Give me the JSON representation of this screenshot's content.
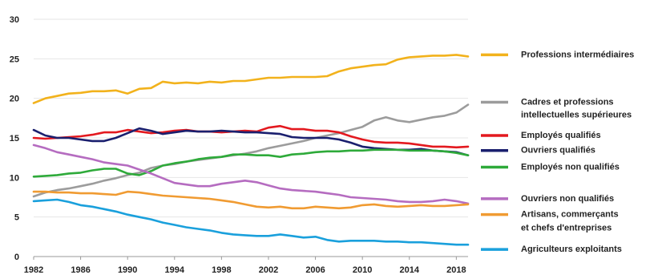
{
  "chart_data": {
    "type": "line",
    "title": "",
    "xlabel": "",
    "ylabel": "",
    "xlim": [
      1982,
      2019
    ],
    "ylim": [
      0,
      30
    ],
    "x_ticks": [
      1982,
      1986,
      1990,
      1994,
      1998,
      2002,
      2006,
      2010,
      2014,
      2018
    ],
    "y_ticks": [
      0,
      5,
      10,
      15,
      20,
      25,
      30
    ],
    "grid": "horizontal",
    "legend_position": "right",
    "x": [
      1982,
      1983,
      1984,
      1985,
      1986,
      1987,
      1988,
      1989,
      1990,
      1991,
      1992,
      1993,
      1994,
      1995,
      1996,
      1997,
      1998,
      1999,
      2000,
      2001,
      2002,
      2003,
      2004,
      2005,
      2006,
      2007,
      2008,
      2009,
      2010,
      2011,
      2012,
      2013,
      2014,
      2015,
      2016,
      2017,
      2018,
      2019
    ],
    "series": [
      {
        "name": "Professions intermédiaires",
        "color": "#f2b21c",
        "values": [
          19.4,
          20.0,
          20.3,
          20.6,
          20.7,
          20.9,
          20.9,
          21.0,
          20.6,
          21.2,
          21.3,
          22.1,
          21.9,
          22.0,
          21.9,
          22.1,
          22.0,
          22.2,
          22.2,
          22.4,
          22.6,
          22.6,
          22.7,
          22.7,
          22.7,
          22.8,
          23.4,
          23.8,
          24.0,
          24.2,
          24.3,
          24.9,
          25.2,
          25.3,
          25.4,
          25.4,
          25.5,
          25.3
        ]
      },
      {
        "name": "Cadres et professions intellectuelles supérieures",
        "color": "#9c9c9c",
        "values": [
          7.6,
          8.1,
          8.4,
          8.6,
          8.9,
          9.2,
          9.6,
          9.9,
          10.3,
          10.6,
          11.2,
          11.5,
          11.7,
          12.0,
          12.2,
          12.4,
          12.6,
          12.8,
          13.0,
          13.3,
          13.7,
          14.0,
          14.3,
          14.6,
          15.0,
          15.3,
          15.6,
          16.0,
          16.4,
          17.2,
          17.6,
          17.2,
          17.0,
          17.3,
          17.6,
          17.8,
          18.2,
          19.2
        ]
      },
      {
        "name": "Employés qualifiés",
        "color": "#e3191f",
        "values": [
          15.0,
          14.9,
          15.0,
          15.1,
          15.2,
          15.4,
          15.7,
          15.7,
          16.0,
          15.8,
          15.6,
          15.7,
          15.9,
          16.0,
          15.8,
          15.8,
          15.7,
          15.8,
          15.9,
          15.8,
          16.3,
          16.5,
          16.1,
          16.1,
          15.9,
          15.9,
          15.7,
          15.2,
          14.8,
          14.5,
          14.4,
          14.4,
          14.3,
          14.1,
          13.9,
          13.9,
          13.8,
          13.9
        ]
      },
      {
        "name": "Ouvriers qualifiés",
        "color": "#1a1f6e",
        "values": [
          16.0,
          15.3,
          15.0,
          15.0,
          14.8,
          14.6,
          14.6,
          15.0,
          15.6,
          16.2,
          15.9,
          15.5,
          15.7,
          15.9,
          15.8,
          15.8,
          15.9,
          15.8,
          15.7,
          15.7,
          15.6,
          15.5,
          15.1,
          15.0,
          15.0,
          15.0,
          14.8,
          14.4,
          13.9,
          13.7,
          13.6,
          13.5,
          13.5,
          13.6,
          13.4,
          13.3,
          13.2,
          12.8
        ]
      },
      {
        "name": "Employés non qualifiés",
        "color": "#2eaa3a",
        "values": [
          10.1,
          10.2,
          10.3,
          10.5,
          10.6,
          10.9,
          11.1,
          11.1,
          10.5,
          10.3,
          10.8,
          11.5,
          11.8,
          12.0,
          12.3,
          12.5,
          12.6,
          12.9,
          12.9,
          12.8,
          12.8,
          12.6,
          12.9,
          13.0,
          13.2,
          13.3,
          13.3,
          13.4,
          13.4,
          13.5,
          13.5,
          13.5,
          13.4,
          13.4,
          13.4,
          13.3,
          13.1,
          12.8
        ]
      },
      {
        "name": "Ouvriers non qualifiés",
        "color": "#b56cc0",
        "values": [
          14.1,
          13.7,
          13.2,
          12.9,
          12.6,
          12.3,
          11.9,
          11.7,
          11.5,
          11.0,
          10.5,
          9.9,
          9.3,
          9.1,
          8.9,
          8.9,
          9.2,
          9.4,
          9.6,
          9.4,
          9.0,
          8.6,
          8.4,
          8.3,
          8.2,
          8.0,
          7.8,
          7.5,
          7.4,
          7.3,
          7.2,
          7.0,
          6.9,
          6.9,
          7.0,
          7.2,
          7.0,
          6.7
        ]
      },
      {
        "name": "Artisans, commerçants et chefs d'entreprises",
        "color": "#f09b32",
        "values": [
          8.2,
          8.2,
          8.1,
          8.1,
          8.0,
          8.0,
          7.9,
          7.8,
          8.2,
          8.1,
          7.9,
          7.7,
          7.6,
          7.5,
          7.4,
          7.3,
          7.1,
          6.9,
          6.6,
          6.3,
          6.2,
          6.3,
          6.1,
          6.1,
          6.3,
          6.2,
          6.1,
          6.2,
          6.5,
          6.6,
          6.4,
          6.3,
          6.4,
          6.5,
          6.4,
          6.4,
          6.5,
          6.6
        ]
      },
      {
        "name": "Agriculteurs exploitants",
        "color": "#1aa0dc",
        "values": [
          7.0,
          7.1,
          7.2,
          6.9,
          6.5,
          6.3,
          6.0,
          5.7,
          5.3,
          5.0,
          4.7,
          4.3,
          4.0,
          3.7,
          3.5,
          3.3,
          3.0,
          2.8,
          2.7,
          2.6,
          2.6,
          2.8,
          2.6,
          2.4,
          2.5,
          2.1,
          1.9,
          2.0,
          2.0,
          2.0,
          1.9,
          1.9,
          1.8,
          1.8,
          1.7,
          1.6,
          1.5,
          1.5
        ]
      }
    ]
  }
}
